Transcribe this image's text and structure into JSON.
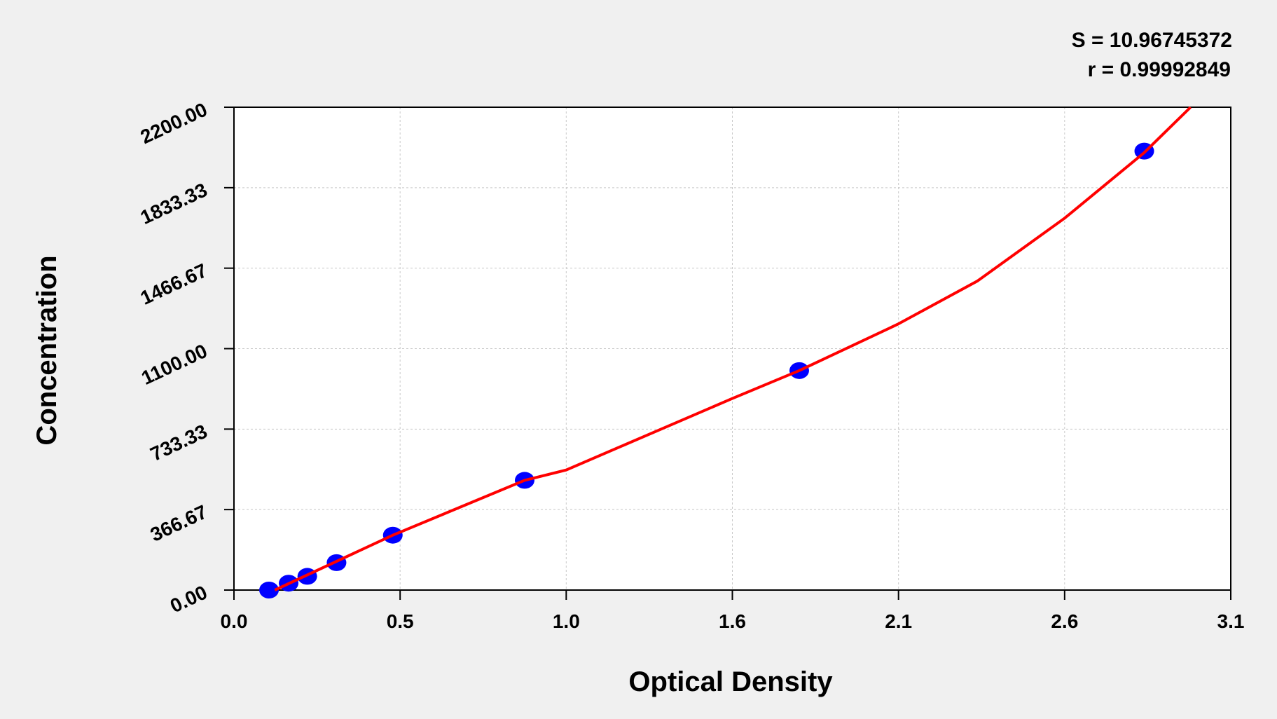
{
  "chart_data": {
    "type": "scatter",
    "annotations": [
      "S = 10.96745372",
      "r = 0.99992849"
    ],
    "x_label": "Optical Density",
    "y_label": "Concentration",
    "xlim": [
      0,
      3.1
    ],
    "ylim": [
      0,
      2200
    ],
    "xticks": [
      {
        "value": 0,
        "label": "0.0"
      },
      {
        "value": 0.5167,
        "label": "0.5"
      },
      {
        "value": 1.0333,
        "label": "1.0"
      },
      {
        "value": 1.55,
        "label": "1.6"
      },
      {
        "value": 2.0667,
        "label": "2.1"
      },
      {
        "value": 2.5833,
        "label": "2.6"
      },
      3.1
    ],
    "yticks": [
      {
        "value": 0,
        "label": "0.00"
      },
      {
        "value": 366.67,
        "label": "366.67"
      },
      {
        "value": 733.33,
        "label": "733.33"
      },
      {
        "value": 1100,
        "label": "1100.00"
      },
      {
        "value": 1466.67,
        "label": "1466.67"
      },
      {
        "value": 1833.33,
        "label": "1833.33"
      },
      {
        "value": 2200,
        "label": "2200.00"
      }
    ],
    "grid": true,
    "series": [
      {
        "type": "scatter",
        "color": "#0000ff",
        "x": [
          0.109,
          0.17,
          0.228,
          0.319,
          0.494,
          0.904,
          1.758,
          2.831
        ],
        "values": [
          0,
          31.25,
          62.5,
          125,
          250,
          500,
          1000,
          2000
        ]
      },
      {
        "type": "line",
        "color": "#ff0000",
        "x": [
          0.127,
          0.494,
          0.904,
          1.033,
          1.547,
          1.758,
          2.064,
          2.312,
          2.583,
          2.83,
          2.975
        ],
        "values": [
          0,
          250,
          500,
          547,
          871,
          1000,
          1211,
          1408,
          1694,
          1992,
          2200
        ]
      }
    ]
  }
}
